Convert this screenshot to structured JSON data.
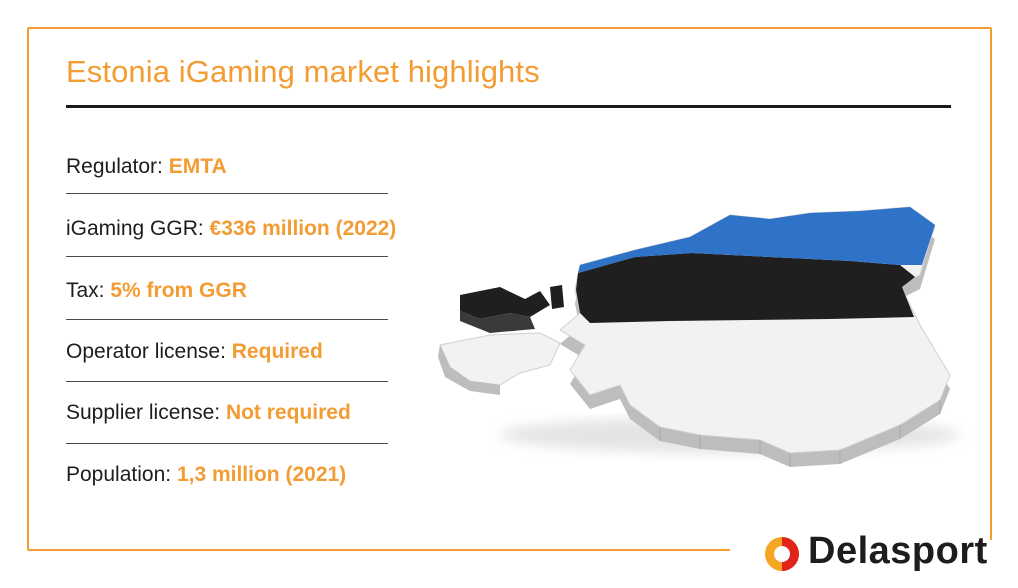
{
  "title": "Estonia iGaming market highlights",
  "facts": [
    {
      "label": "Regulator:",
      "value": "EMTA"
    },
    {
      "label": "iGaming GGR:",
      "value": "€336 million (2022)"
    },
    {
      "label": "Tax:",
      "value": "5% from GGR"
    },
    {
      "label": "Operator license:",
      "value": "Required"
    },
    {
      "label": "Supplier license:",
      "value": "Not required"
    },
    {
      "label": "Population:",
      "value": "1,3 million (2021)"
    }
  ],
  "brand": {
    "name": "Delasport"
  },
  "map": {
    "icon": "estonia-flag-map",
    "flag_colors": [
      "#2f73c9",
      "#1f1f1f",
      "#f2f2f2"
    ]
  },
  "colors": {
    "accent": "#f39c33",
    "text": "#1d1d1d",
    "rule": "#1a1a1a",
    "logo_red": "#e2231a",
    "logo_orange": "#f5a623"
  }
}
